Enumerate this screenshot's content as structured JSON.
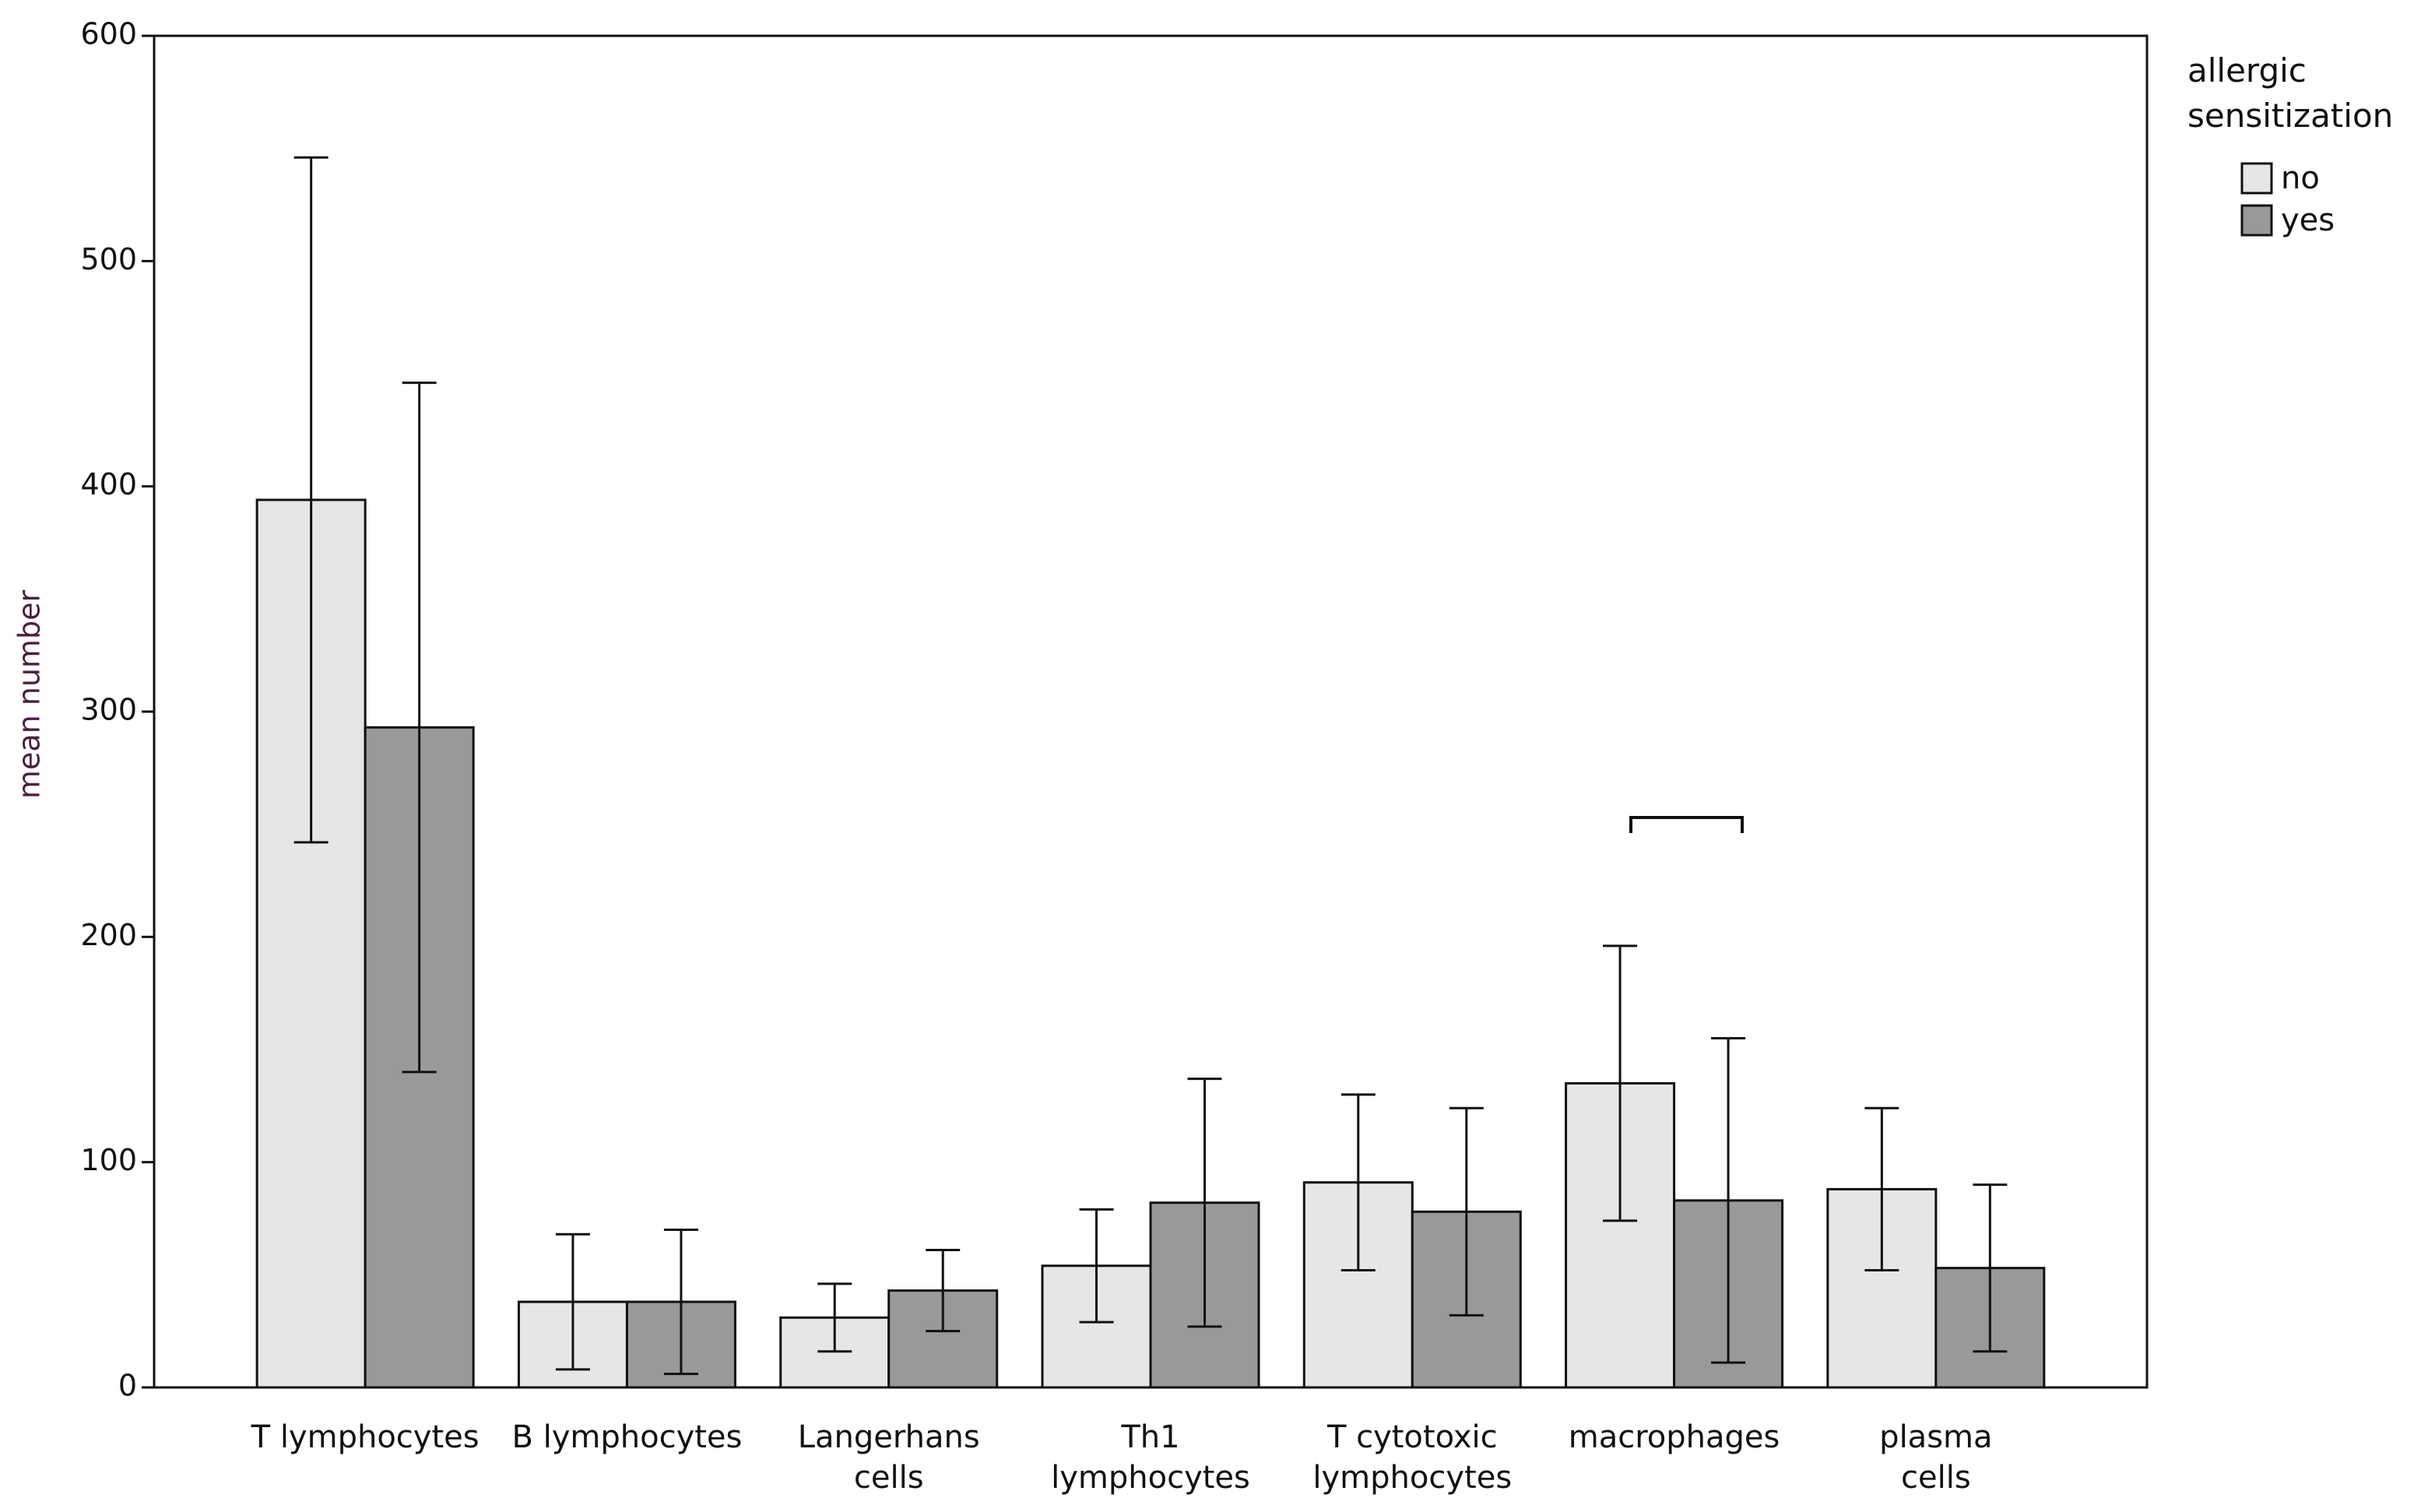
{
  "chart_data": {
    "type": "bar",
    "y_label": "mean number",
    "legend_title": "allergic sensitization",
    "categories": [
      "T lymphocytes",
      "B lymphocytes",
      "Langerhans\ncells",
      "Th1\nlymphocytes",
      "T cytotoxic\nlymphocytes",
      "macrophages",
      "plasma\ncells"
    ],
    "series": [
      {
        "name": "no",
        "color": "#e6e6e6",
        "values": [
          394,
          38,
          31,
          54,
          91,
          135,
          88
        ],
        "errors": [
          152,
          30,
          15,
          25,
          39,
          61,
          36
        ]
      },
      {
        "name": "yes",
        "color": "#999999",
        "values": [
          293,
          38,
          43,
          82,
          78,
          83,
          53
        ],
        "errors": [
          153,
          32,
          18,
          55,
          46,
          72,
          37
        ]
      }
    ],
    "ylim": [
      0,
      600
    ],
    "yticks": [
      0,
      100,
      200,
      300,
      400,
      500,
      600
    ],
    "grid": false,
    "legend": "right"
  }
}
